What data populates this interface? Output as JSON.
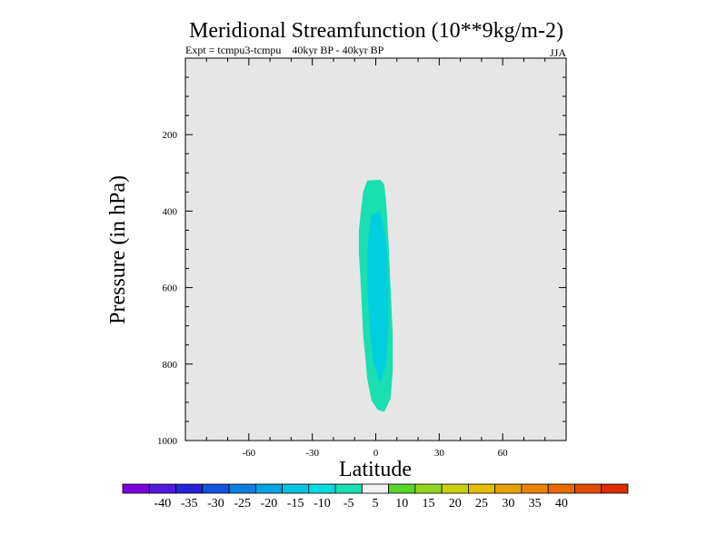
{
  "chart_data": {
    "type": "contour",
    "title": "Meridional Streamfunction (10**9kg/m-2)",
    "subtitle_left": "Expt = tcmpu3-tcmpu    40kyr BP - 40kyr BP",
    "subtitle_right": "JJA",
    "xlabel": "Latitude",
    "ylabel": "Pressure (in hPa)",
    "xlim": [
      -90,
      90
    ],
    "ylim": [
      1000,
      0
    ],
    "x_ticks": [
      -60,
      -30,
      0,
      30,
      60
    ],
    "x_tick_labels": [
      "-60",
      "-30",
      "0",
      "30",
      "60"
    ],
    "y_ticks": [
      200,
      400,
      600,
      800,
      1000
    ],
    "y_tick_labels": [
      "200",
      "400",
      "600",
      "800",
      "1000"
    ],
    "background_color": "#e6e6e6",
    "contours": [
      {
        "range": "-10 to -5",
        "color": "#1adfb0",
        "points": [
          [
            -4,
            320
          ],
          [
            2,
            318
          ],
          [
            4,
            330
          ],
          [
            5,
            380
          ],
          [
            6,
            480
          ],
          [
            7,
            600
          ],
          [
            8,
            720
          ],
          [
            8,
            820
          ],
          [
            7,
            890
          ],
          [
            4,
            925
          ],
          [
            1,
            920
          ],
          [
            -2,
            895
          ],
          [
            -4,
            840
          ],
          [
            -6,
            720
          ],
          [
            -7,
            600
          ],
          [
            -8,
            510
          ],
          [
            -8,
            450
          ],
          [
            -7,
            400
          ],
          [
            -6,
            350
          ]
        ]
      },
      {
        "range": "-15 to -10",
        "color": "#00cfe0",
        "points": [
          [
            -2,
            410
          ],
          [
            2,
            400
          ],
          [
            5,
            480
          ],
          [
            6,
            580
          ],
          [
            6,
            700
          ],
          [
            5,
            800
          ],
          [
            2,
            850
          ],
          [
            -1,
            800
          ],
          [
            -3,
            700
          ],
          [
            -4,
            600
          ],
          [
            -4,
            500
          ],
          [
            -3,
            440
          ]
        ]
      }
    ],
    "colorbar": {
      "colors": [
        "#7b00d9",
        "#5418dd",
        "#2424d8",
        "#1254e0",
        "#0c7fe0",
        "#00a6e0",
        "#00c4e2",
        "#00dbe0",
        "#1adfb0",
        "#f2f2f2",
        "#55d62a",
        "#97d61e",
        "#c8d10e",
        "#e0bd00",
        "#e8a200",
        "#ea8400",
        "#e86a00",
        "#e24c00",
        "#dc2c00"
      ],
      "labels": [
        "-40",
        "-35",
        "-30",
        "-25",
        "-20",
        "-15",
        "-10",
        "-5",
        "5",
        "10",
        "15",
        "20",
        "25",
        "30",
        "35",
        "40"
      ]
    }
  }
}
